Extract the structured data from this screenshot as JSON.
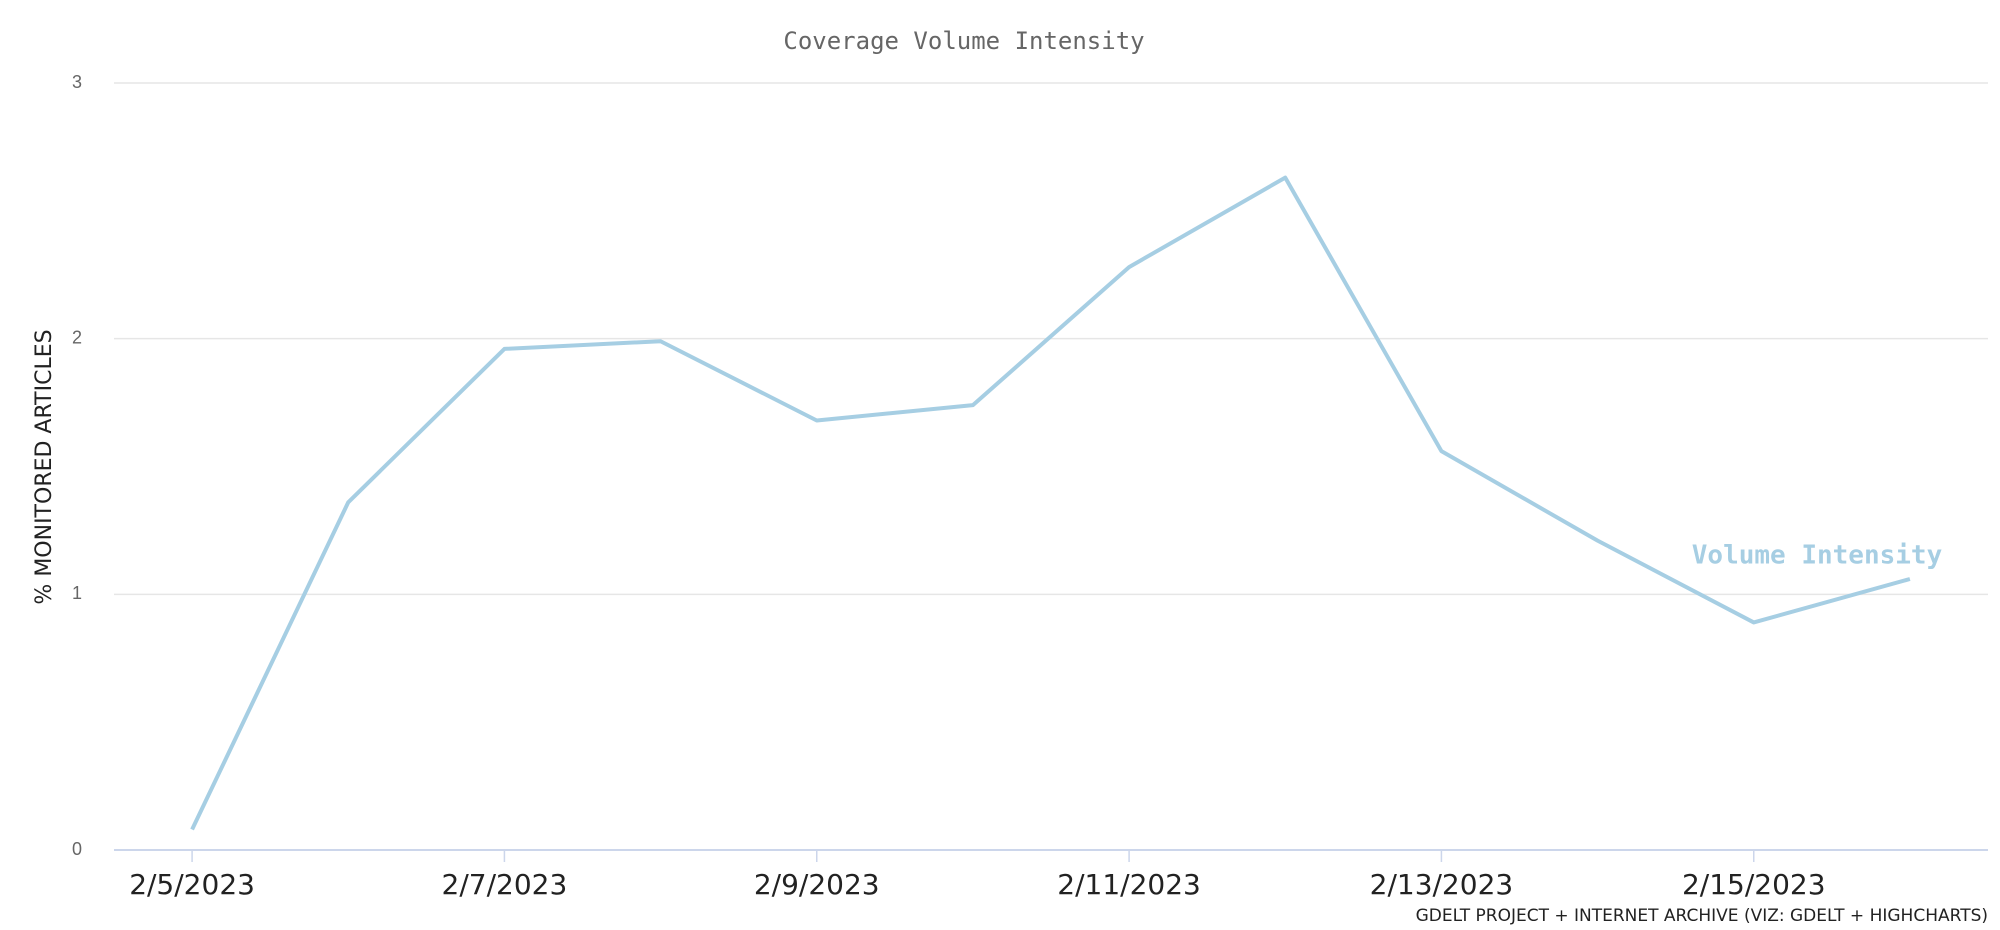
{
  "chart_data": {
    "type": "line",
    "title": "Coverage Volume Intensity",
    "y_label": "% MONITORED ARTICLES",
    "credits": "GDELT PROJECT + INTERNET ARCHIVE (VIZ: GDELT + HIGHCHARTS)",
    "categories": [
      "2/5/2023",
      null,
      "2/7/2023",
      null,
      "2/9/2023",
      null,
      "2/11/2023",
      null,
      "2/13/2023",
      null,
      "2/15/2023",
      null
    ],
    "series": [
      {
        "name": "Volume Intensity",
        "color": "#a6cee3",
        "values": [
          0.08,
          1.36,
          1.96,
          1.99,
          1.68,
          1.74,
          2.28,
          2.63,
          1.56,
          1.21,
          0.89,
          1.06
        ]
      }
    ],
    "ylim": [
      0,
      3
    ],
    "yticks": [
      0,
      1,
      2,
      3
    ],
    "grid": true
  }
}
